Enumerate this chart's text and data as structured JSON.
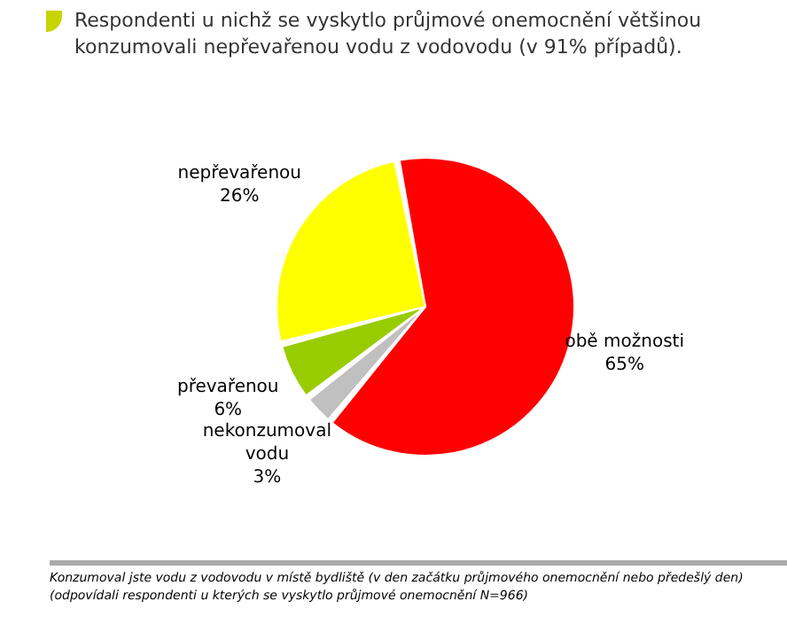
{
  "chart_data": {
    "type": "pie",
    "title": "Respondenti u nichž se vyskytlo průjmové onemocnění většinou konzumovali nepřevařenou vodu z vodovodu (v 91% případů).",
    "categories": [
      "obě možnosti",
      "nekonzumoval vodu",
      "převařenou",
      "nepřevařenou"
    ],
    "values": [
      65,
      3,
      6,
      26
    ],
    "colors": [
      "#ff0000",
      "#c0c0c0",
      "#99cc00",
      "#ffff00"
    ],
    "value_labels": [
      "65%",
      "3%",
      "6%",
      "26%"
    ],
    "annotations": [
      "Konzumoval jste vodu z vodovodu v místě bydliště (v den začátku průjmového onemocnění nebo předešlý den)",
      "(odpovídali respondenti u kterých se vyskytlo průjmové onemocnění N=966)"
    ]
  }
}
